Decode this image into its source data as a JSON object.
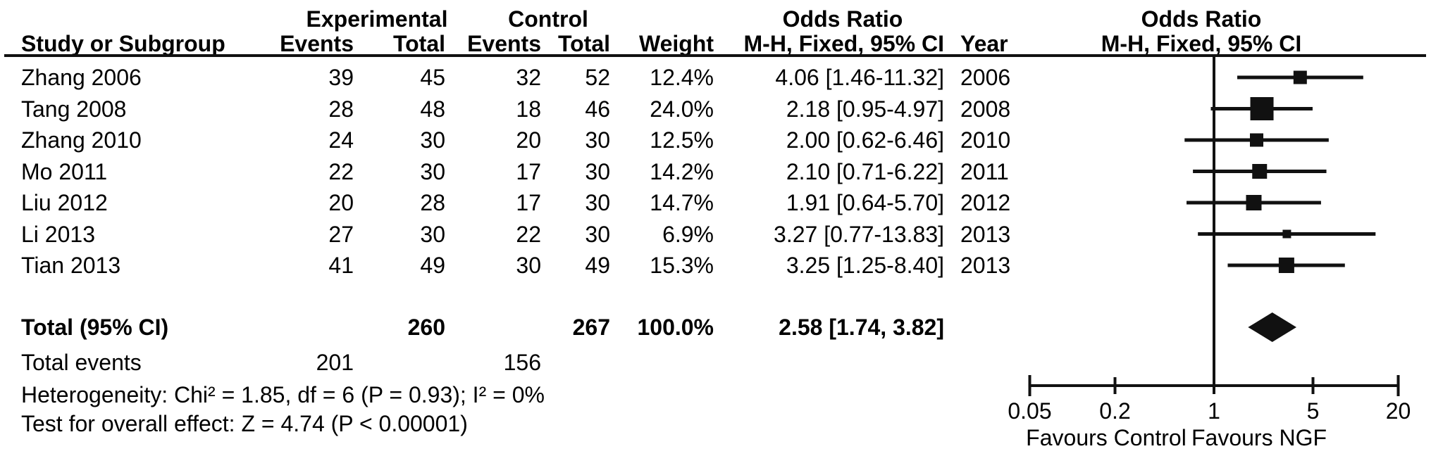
{
  "header": {
    "group_experimental": "Experimental",
    "group_control": "Control",
    "or_title_left": "Odds Ratio",
    "or_title_plot": "Odds Ratio",
    "col_study": "Study or Subgroup",
    "col_exp_events": "Events",
    "col_exp_total": "Total",
    "col_ctrl_events": "Events",
    "col_ctrl_total": "Total",
    "col_weight": "Weight",
    "col_or_method_left": "M-H, Fixed, 95% CI",
    "col_year": "Year",
    "col_or_method_plot": "M-H, Fixed, 95% CI"
  },
  "studies": [
    {
      "name": "Zhang 2006",
      "exp_events": "39",
      "exp_total": "45",
      "ctrl_events": "32",
      "ctrl_total": "52",
      "weight": "12.4%",
      "or_ci": "4.06 [1.46-11.32]",
      "year": "2006"
    },
    {
      "name": "Tang 2008",
      "exp_events": "28",
      "exp_total": "48",
      "ctrl_events": "18",
      "ctrl_total": "46",
      "weight": "24.0%",
      "or_ci": "2.18 [0.95-4.97]",
      "year": "2008"
    },
    {
      "name": "Zhang 2010",
      "exp_events": "24",
      "exp_total": "30",
      "ctrl_events": "20",
      "ctrl_total": "30",
      "weight": "12.5%",
      "or_ci": "2.00 [0.62-6.46]",
      "year": "2010"
    },
    {
      "name": "Mo 2011",
      "exp_events": "22",
      "exp_total": "30",
      "ctrl_events": "17",
      "ctrl_total": "30",
      "weight": "14.2%",
      "or_ci": "2.10 [0.71-6.22]",
      "year": "2011"
    },
    {
      "name": "Liu 2012",
      "exp_events": "20",
      "exp_total": "28",
      "ctrl_events": "17",
      "ctrl_total": "30",
      "weight": "14.7%",
      "or_ci": "1.91 [0.64-5.70]",
      "year": "2012"
    },
    {
      "name": "Li 2013",
      "exp_events": "27",
      "exp_total": "30",
      "ctrl_events": "22",
      "ctrl_total": "30",
      "weight": "6.9%",
      "or_ci": "3.27 [0.77-13.83]",
      "year": "2013"
    },
    {
      "name": "Tian 2013",
      "exp_events": "41",
      "exp_total": "49",
      "ctrl_events": "30",
      "ctrl_total": "49",
      "weight": "15.3%",
      "or_ci": "3.25 [1.25-8.40]",
      "year": "2013"
    }
  ],
  "totals": {
    "label": "Total (95% CI)",
    "exp_total": "260",
    "ctrl_total": "267",
    "weight": "100.0%",
    "or_ci": "2.58 [1.74, 3.82]",
    "events_label": "Total events",
    "exp_events": "201",
    "ctrl_events": "156"
  },
  "footer": {
    "heterogeneity": "Heterogeneity: Chi² = 1.85, df = 6 (P = 0.93); I² = 0%",
    "overall_effect": "Test for overall effect: Z = 4.74 (P < 0.00001)"
  },
  "chart_data": {
    "type": "forest",
    "x_scale": "log",
    "null_line": 1,
    "x_range": [
      0.05,
      20
    ],
    "axis_ticks": [
      0.05,
      0.2,
      1,
      5,
      20
    ],
    "axis_tick_labels": [
      "0.05",
      "0.2",
      "1",
      "5",
      "20"
    ],
    "favours_left": "Favours Control",
    "favours_right": "Favours NGF",
    "rows": [
      {
        "study": "Zhang 2006",
        "or": 4.06,
        "ci_low": 1.46,
        "ci_high": 11.32,
        "weight_pct": 12.4,
        "year": 2006
      },
      {
        "study": "Tang 2008",
        "or": 2.18,
        "ci_low": 0.95,
        "ci_high": 4.97,
        "weight_pct": 24.0,
        "year": 2008
      },
      {
        "study": "Zhang 2010",
        "or": 2.0,
        "ci_low": 0.62,
        "ci_high": 6.46,
        "weight_pct": 12.5,
        "year": 2010
      },
      {
        "study": "Mo 2011",
        "or": 2.1,
        "ci_low": 0.71,
        "ci_high": 6.22,
        "weight_pct": 14.2,
        "year": 2011
      },
      {
        "study": "Liu 2012",
        "or": 1.91,
        "ci_low": 0.64,
        "ci_high": 5.7,
        "weight_pct": 14.7,
        "year": 2012
      },
      {
        "study": "Li 2013",
        "or": 3.27,
        "ci_low": 0.77,
        "ci_high": 13.83,
        "weight_pct": 6.9,
        "year": 2013
      },
      {
        "study": "Tian 2013",
        "or": 3.25,
        "ci_low": 1.25,
        "ci_high": 8.4,
        "weight_pct": 15.3,
        "year": 2013
      }
    ],
    "total": {
      "label": "Total (95% CI)",
      "or": 2.58,
      "ci_low": 1.74,
      "ci_high": 3.82,
      "weight_pct": 100.0
    },
    "marker_color": "#111111",
    "line_color": "#111111"
  }
}
